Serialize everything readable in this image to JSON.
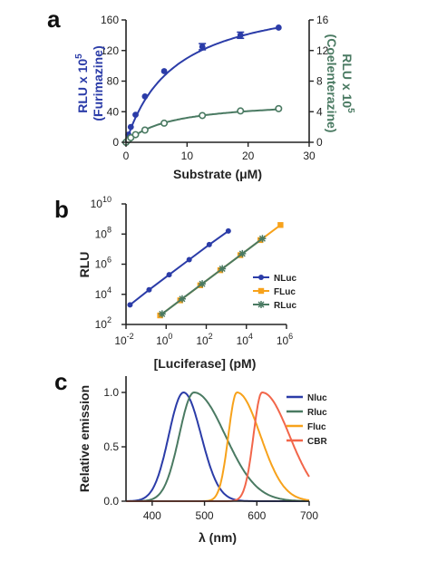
{
  "panel_labels": [
    "a",
    "b",
    "c"
  ],
  "chart_data": [
    {
      "panel": "a",
      "type": "line",
      "xlabel": "Substrate (μM)",
      "ylabel_left_line1": "RLU x 10",
      "ylabel_left_exp": "5",
      "ylabel_left_line2": "(Furimazine)",
      "ylabel_right_line1": "RLU x 10",
      "ylabel_right_exp": "5",
      "ylabel_right_line2": "(Coelenterazine)",
      "xlim": [
        0,
        30
      ],
      "ylim_left": [
        0,
        160
      ],
      "ylim_right": [
        0,
        16
      ],
      "x_ticks": [
        "0",
        "10",
        "20",
        "30"
      ],
      "y_left_ticks": [
        "0",
        "40",
        "80",
        "120",
        "160"
      ],
      "y_right_ticks": [
        "0",
        "4",
        "8",
        "12",
        "16"
      ],
      "series": [
        {
          "axis": "left",
          "color": "#2b3ca8",
          "marker": "filled-circle",
          "x": [
            0,
            0.39,
            0.78,
            1.56,
            3.1,
            6.25,
            12.5,
            18.75,
            25
          ],
          "y": [
            0,
            10,
            20,
            36,
            60,
            93,
            125,
            140,
            150
          ],
          "error": [
            0,
            0,
            0,
            0,
            0,
            0,
            4,
            4,
            0
          ],
          "fit": {
            "vmax": 198,
            "km": 8.0
          }
        },
        {
          "axis": "right",
          "color": "#4a7a62",
          "marker": "open-circle",
          "x": [
            0,
            0.39,
            0.78,
            1.56,
            3.1,
            6.25,
            12.5,
            18.75,
            25
          ],
          "y": [
            0,
            0.3,
            0.6,
            1.0,
            1.6,
            2.5,
            3.5,
            4.1,
            4.4
          ],
          "fit": {
            "vmax": 5.6,
            "km": 7.5
          }
        }
      ]
    },
    {
      "panel": "b",
      "type": "scatter",
      "xlabel": "[Luciferase] (pM)",
      "ylabel": "RLU",
      "x_log_range": [
        -2,
        6
      ],
      "y_log_range": [
        2,
        10
      ],
      "x_tick_exponents": [
        "-2",
        "0",
        "2",
        "4",
        "6"
      ],
      "y_tick_exponents": [
        "2",
        "4",
        "6",
        "8",
        "10"
      ],
      "legend_position": "right",
      "series": [
        {
          "name": "NLuc",
          "color": "#2b3ca8",
          "marker": "circle",
          "log_x": [
            -1.8,
            -0.85,
            0.15,
            1.15,
            2.15,
            3.1
          ],
          "log_y": [
            3.3,
            4.3,
            5.3,
            6.3,
            7.3,
            8.2
          ]
        },
        {
          "name": "FLuc",
          "color": "#f7a21b",
          "marker": "square",
          "log_x": [
            -0.3,
            0.7,
            1.7,
            2.7,
            3.7,
            4.7,
            5.7
          ],
          "log_y": [
            2.6,
            3.6,
            4.6,
            5.6,
            6.6,
            7.6,
            8.6
          ]
        },
        {
          "name": "RLuc",
          "color": "#4a7a62",
          "marker": "star",
          "log_x": [
            -0.2,
            0.8,
            1.8,
            2.8,
            3.8,
            4.8
          ],
          "log_y": [
            2.7,
            3.7,
            4.7,
            5.7,
            6.7,
            7.7
          ]
        }
      ]
    },
    {
      "panel": "c",
      "type": "line",
      "xlabel": "λ (nm)",
      "ylabel": "Relative emission",
      "xlim": [
        350,
        700
      ],
      "ylim": [
        0,
        1.0
      ],
      "x_ticks": [
        "400",
        "500",
        "600",
        "700"
      ],
      "y_ticks": [
        "0.0",
        "0.5",
        "1.0"
      ],
      "legend_position": "top-right",
      "series": [
        {
          "name": "Nluc",
          "color": "#2b3ca8",
          "peak": 460,
          "left_width": 38,
          "right_width": 45
        },
        {
          "name": "Rluc",
          "color": "#4a7a62",
          "peak": 480,
          "left_width": 38,
          "right_width": 80
        },
        {
          "name": "Fluc",
          "color": "#f7a21b",
          "peak": 562,
          "left_width": 22,
          "right_width": 60
        },
        {
          "name": "CBR",
          "color": "#f2664a",
          "peak": 610,
          "left_width": 22,
          "right_width": 70
        }
      ]
    }
  ]
}
